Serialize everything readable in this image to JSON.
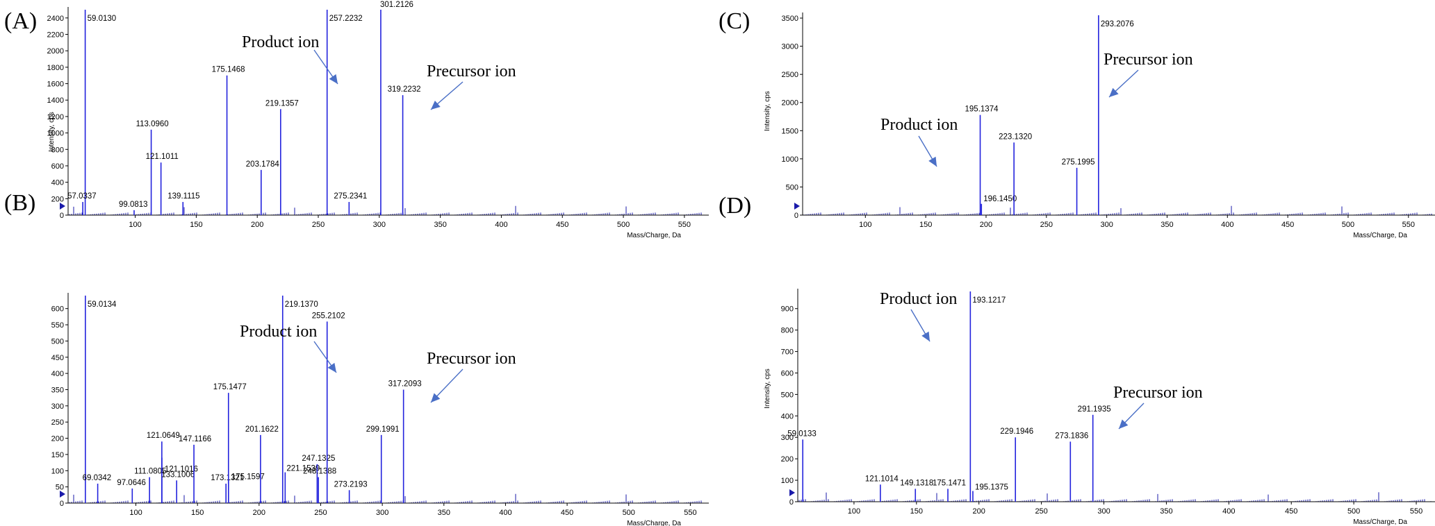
{
  "colors": {
    "peak": "#2222dd",
    "axis": "#000000",
    "arrow": "#4a6fc6",
    "baseline": "#1a1aaa"
  },
  "chart_data": [
    {
      "panel": "(A)",
      "type": "bar",
      "xlabel": "Mass/Charge, Da",
      "ylabel": "Intensity, cps",
      "xlim": [
        45,
        570
      ],
      "ylim": [
        0,
        2500
      ],
      "xticks": [
        100,
        150,
        200,
        250,
        300,
        350,
        400,
        450,
        500,
        550
      ],
      "yticks": [
        0,
        200,
        400,
        600,
        800,
        1000,
        1200,
        1400,
        1600,
        1800,
        2000,
        2200,
        2400
      ],
      "peaks": [
        {
          "mz": 59.013,
          "y": 2500,
          "label": "59.0130"
        },
        {
          "mz": 57.0337,
          "y": 160,
          "label": "57.0337"
        },
        {
          "mz": 99.0813,
          "y": 60,
          "label": "99.0813"
        },
        {
          "mz": 113.096,
          "y": 1040,
          "label": "113.0960"
        },
        {
          "mz": 121.1011,
          "y": 640,
          "label": "121.1011"
        },
        {
          "mz": 139.1115,
          "y": 160,
          "label": "139.1115"
        },
        {
          "mz": 175.1468,
          "y": 1700,
          "label": "175.1468"
        },
        {
          "mz": 203.1784,
          "y": 550,
          "label": "203.1784"
        },
        {
          "mz": 219.1357,
          "y": 1290,
          "label": "219.1357"
        },
        {
          "mz": 257.2232,
          "y": 2500,
          "label": "257.2232"
        },
        {
          "mz": 275.2341,
          "y": 160,
          "label": "275.2341"
        },
        {
          "mz": 301.2126,
          "y": 2500,
          "label": "301.2126"
        },
        {
          "mz": 319.2232,
          "y": 1460,
          "label": "319.2232"
        }
      ],
      "annotations": [
        {
          "text": "Product ion"
        },
        {
          "text": "Precursor ion"
        }
      ]
    },
    {
      "panel": "(B)",
      "type": "bar",
      "xlabel": "Mass/Charge, Da",
      "ylabel": "",
      "xlim": [
        45,
        565
      ],
      "ylim": [
        0,
        640
      ],
      "xticks": [
        100,
        150,
        200,
        250,
        300,
        350,
        400,
        450,
        500,
        550
      ],
      "yticks": [
        0,
        50,
        100,
        150,
        200,
        250,
        300,
        350,
        400,
        450,
        500,
        550,
        600
      ],
      "peaks": [
        {
          "mz": 59.0134,
          "y": 640,
          "label": "59.0134"
        },
        {
          "mz": 69.0342,
          "y": 60,
          "label": "69.0342"
        },
        {
          "mz": 97.0646,
          "y": 45,
          "label": "97.0646"
        },
        {
          "mz": 111.0805,
          "y": 80,
          "label": "111.0805"
        },
        {
          "mz": 121.0649,
          "y": 190,
          "label": "121.0649"
        },
        {
          "mz": 121.1016,
          "y": 140,
          "label": "121.1016"
        },
        {
          "mz": 133.1006,
          "y": 70,
          "label": "133.1006"
        },
        {
          "mz": 147.1166,
          "y": 180,
          "label": "147.1166"
        },
        {
          "mz": 173.1321,
          "y": 60,
          "label": "173.1321"
        },
        {
          "mz": 175.1477,
          "y": 340,
          "label": "175.1477"
        },
        {
          "mz": 175.1597,
          "y": 70,
          "label": "175.1597"
        },
        {
          "mz": 201.1622,
          "y": 210,
          "label": "201.1622"
        },
        {
          "mz": 219.137,
          "y": 640,
          "label": "219.1370"
        },
        {
          "mz": 221.1539,
          "y": 95,
          "label": "221.1539"
        },
        {
          "mz": 247.1325,
          "y": 120,
          "label": "247.1325"
        },
        {
          "mz": 248.1388,
          "y": 80,
          "label": "248.1388"
        },
        {
          "mz": 255.2102,
          "y": 560,
          "label": "255.2102"
        },
        {
          "mz": 273.2193,
          "y": 40,
          "label": "273.2193"
        },
        {
          "mz": 299.1991,
          "y": 210,
          "label": "299.1991"
        },
        {
          "mz": 317.2093,
          "y": 350,
          "label": "317.2093"
        }
      ],
      "annotations": [
        {
          "text": "Product ion"
        },
        {
          "text": "Precursor ion"
        }
      ]
    },
    {
      "panel": "(C)",
      "type": "bar",
      "xlabel": "Mass/Charge, Da",
      "ylabel": "Intensity, cps",
      "xlim": [
        48,
        572
      ],
      "ylim": [
        0,
        3550
      ],
      "xticks": [
        100,
        150,
        200,
        250,
        300,
        350,
        400,
        450,
        500,
        550
      ],
      "yticks": [
        0,
        500,
        1000,
        1500,
        2000,
        2500,
        3000,
        3500
      ],
      "peaks": [
        {
          "mz": 195.1374,
          "y": 1780,
          "label": "195.1374"
        },
        {
          "mz": 196.145,
          "y": 200,
          "label": "196.1450"
        },
        {
          "mz": 223.132,
          "y": 1290,
          "label": "223.1320"
        },
        {
          "mz": 275.1995,
          "y": 840,
          "label": "275.1995"
        },
        {
          "mz": 293.2076,
          "y": 3550,
          "label": "293.2076"
        }
      ],
      "annotations": [
        {
          "text": "Product ion"
        },
        {
          "text": "Precursor ion"
        }
      ]
    },
    {
      "panel": "(D)",
      "type": "bar",
      "xlabel": "Mass/Charge, Da",
      "ylabel": "Intensity, cps",
      "xlim": [
        55,
        565
      ],
      "ylim": [
        0,
        980
      ],
      "xticks": [
        100,
        150,
        200,
        250,
        300,
        350,
        400,
        450,
        500,
        550
      ],
      "yticks": [
        0,
        100,
        200,
        300,
        400,
        500,
        600,
        700,
        800,
        900
      ],
      "peaks": [
        {
          "mz": 59.0133,
          "y": 290,
          "label": "59.0133"
        },
        {
          "mz": 121.1014,
          "y": 80,
          "label": "121.1014"
        },
        {
          "mz": 149.1318,
          "y": 60,
          "label": "149.1318"
        },
        {
          "mz": 175.1471,
          "y": 60,
          "label": "175.1471"
        },
        {
          "mz": 193.1217,
          "y": 980,
          "label": "193.1217"
        },
        {
          "mz": 195.1375,
          "y": 50,
          "label": "195.1375"
        },
        {
          "mz": 229.1946,
          "y": 300,
          "label": "229.1946"
        },
        {
          "mz": 273.1836,
          "y": 280,
          "label": "273.1836"
        },
        {
          "mz": 291.1935,
          "y": 405,
          "label": "291.1935"
        }
      ],
      "annotations": [
        {
          "text": "Product ion"
        },
        {
          "text": "Precursor ion"
        }
      ]
    }
  ]
}
